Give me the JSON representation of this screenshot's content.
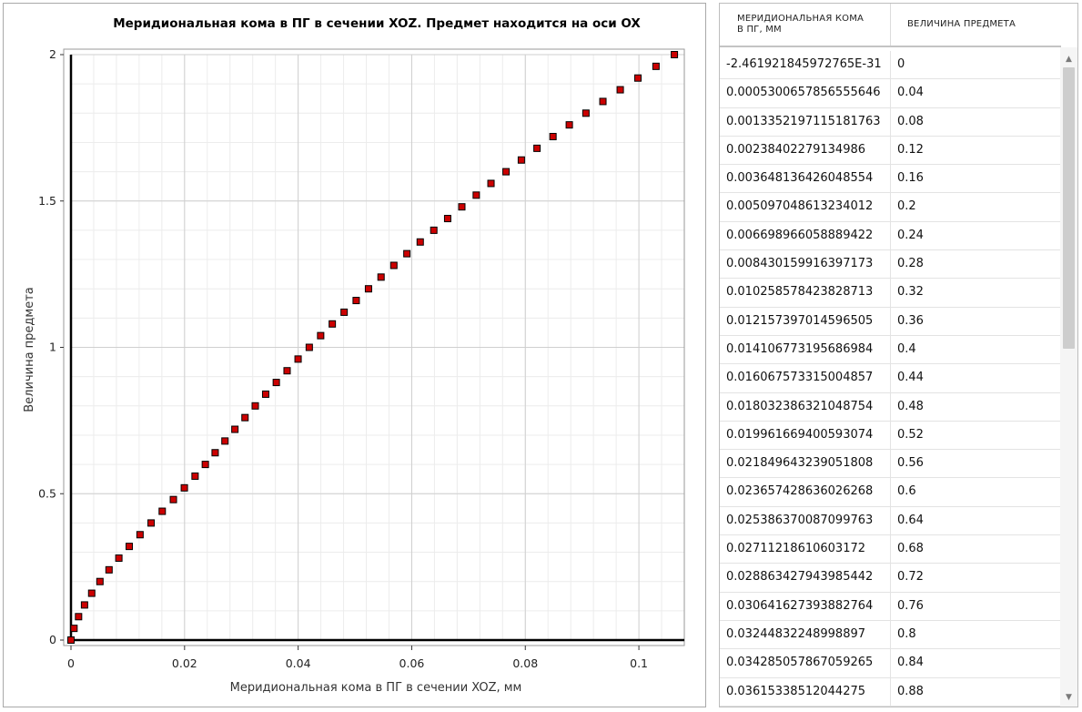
{
  "chart_data": {
    "type": "scatter",
    "title": "Меридиональная кома в ПГ в сечении XOZ. Предмет находится на оси OX",
    "xlabel": "Меридиональная кома в ПГ в сечении XOZ, мм",
    "ylabel": "Величина предмета",
    "xlim": [
      0,
      0.108
    ],
    "ylim": [
      0,
      2
    ],
    "xticks": [
      "0",
      "0.02",
      "0.04",
      "0.06",
      "0.08",
      "0.1"
    ],
    "yticks": [
      "0",
      "0.5",
      "1",
      "1.5",
      "2"
    ],
    "grid": true,
    "marker_color": "#cc0000",
    "x": [
      0,
      0.00053,
      0.001335,
      0.002384,
      0.003648,
      0.005097,
      0.006699,
      0.00843,
      0.010259,
      0.012157,
      0.014107,
      0.016068,
      0.018032,
      0.019962,
      0.02185,
      0.023657,
      0.025386,
      0.027112,
      0.028863,
      0.030642,
      0.032448,
      0.034285,
      0.036153,
      0.038053,
      0.039988,
      0.041958,
      0.043965,
      0.04601,
      0.048095,
      0.05022,
      0.052387,
      0.054597,
      0.056851,
      0.05915,
      0.061495,
      0.063888,
      0.066329,
      0.06882,
      0.071362,
      0.073956,
      0.076603,
      0.079304,
      0.08206,
      0.084873,
      0.087744,
      0.090674,
      0.093664,
      0.096716,
      0.099831,
      0.10301,
      0.10625
    ],
    "y": [
      0,
      0.04,
      0.08,
      0.12,
      0.16,
      0.2,
      0.24,
      0.28,
      0.32,
      0.36,
      0.4,
      0.44,
      0.48,
      0.52,
      0.56,
      0.6,
      0.64,
      0.68,
      0.72,
      0.76,
      0.8,
      0.84,
      0.88,
      0.92,
      0.96,
      1.0,
      1.04,
      1.08,
      1.12,
      1.16,
      1.2,
      1.24,
      1.28,
      1.32,
      1.36,
      1.4,
      1.44,
      1.48,
      1.52,
      1.56,
      1.6,
      1.64,
      1.68,
      1.72,
      1.76,
      1.8,
      1.84,
      1.88,
      1.92,
      1.96,
      2.0
    ]
  },
  "table": {
    "headers": [
      "МЕРИДИОНАЛЬНАЯ КОМА В ПГ, ММ",
      "ВЕЛИЧИНА ПРЕДМЕТА"
    ],
    "header1_lines": [
      "МЕРИДИОНАЛЬНАЯ КОМА",
      "В ПГ, ММ"
    ],
    "rows": [
      [
        "-2.461921845972765E-31",
        "0"
      ],
      [
        "0.0005300657856555646",
        "0.04"
      ],
      [
        "0.0013352197115181763",
        "0.08"
      ],
      [
        "0.00238402279134986",
        "0.12"
      ],
      [
        "0.003648136426048554",
        "0.16"
      ],
      [
        "0.005097048613234012",
        "0.2"
      ],
      [
        "0.006698966058889422",
        "0.24"
      ],
      [
        "0.008430159916397173",
        "0.28"
      ],
      [
        "0.010258578423828713",
        "0.32"
      ],
      [
        "0.012157397014596505",
        "0.36"
      ],
      [
        "0.014106773195686984",
        "0.4"
      ],
      [
        "0.016067573315004857",
        "0.44"
      ],
      [
        "0.018032386321048754",
        "0.48"
      ],
      [
        "0.019961669400593074",
        "0.52"
      ],
      [
        "0.021849643239051808",
        "0.56"
      ],
      [
        "0.023657428636026268",
        "0.6"
      ],
      [
        "0.025386370087099763",
        "0.64"
      ],
      [
        "0.02711218610603172",
        "0.68"
      ],
      [
        "0.028863427943985442",
        "0.72"
      ],
      [
        "0.030641627393882764",
        "0.76"
      ],
      [
        "0.03244832248998897",
        "0.8"
      ],
      [
        "0.034285057867059265",
        "0.84"
      ],
      [
        "0.03615338512044275",
        "0.88"
      ]
    ]
  },
  "scrollbar": {
    "up_icon": "chevron-up-icon",
    "down_icon": "chevron-down-icon",
    "up_glyph": "▲",
    "down_glyph": "▼"
  }
}
